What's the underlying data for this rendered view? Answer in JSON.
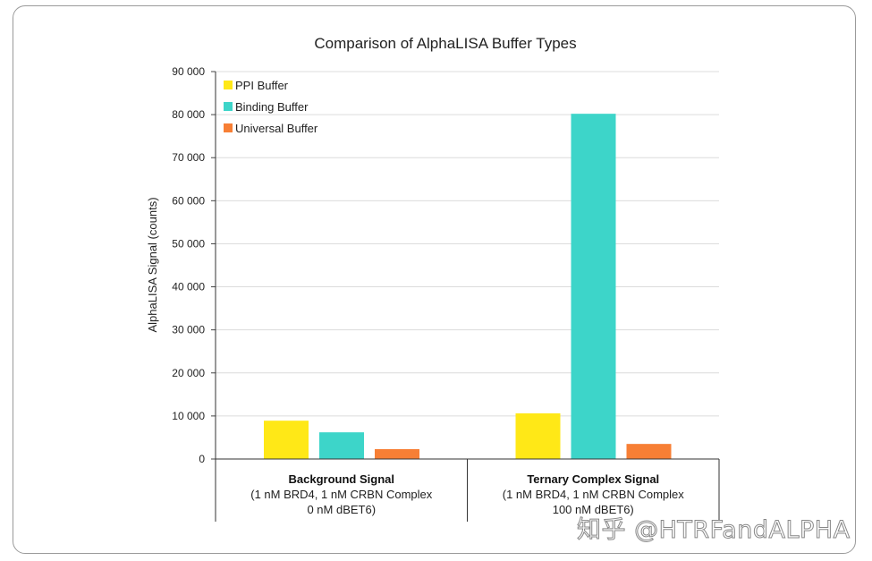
{
  "chart_data": {
    "type": "bar",
    "title": "Comparison of AlphaLISA Buffer Types",
    "xlabel": "",
    "ylabel": "AlphaLISA Signal (counts)",
    "ylim": [
      0,
      90000
    ],
    "yticks": [
      "0",
      "10 000",
      "20 000",
      "30 000",
      "40 000",
      "50 000",
      "60 000",
      "70 000",
      "80 000",
      "90 000"
    ],
    "grid": true,
    "legend_position": "top-left",
    "categories": [
      {
        "title": "Background Signal",
        "line1": "(1 nM BRD4, 1 nM CRBN Complex",
        "line2": "0 nM dBET6)"
      },
      {
        "title": "Ternary Complex Signal",
        "line1": "(1 nM BRD4, 1 nM CRBN Complex",
        "line2": "100 nM dBET6)"
      }
    ],
    "series": [
      {
        "name": "PPI Buffer",
        "color": "#FFE817",
        "values": [
          8900,
          10600
        ]
      },
      {
        "name": "Binding Buffer",
        "color": "#3DD5C9",
        "values": [
          6200,
          80200
        ]
      },
      {
        "name": "Universal Buffer",
        "color": "#F77F35",
        "values": [
          2300,
          3500
        ]
      }
    ]
  },
  "watermark": "知乎 @HTRFandALPHA"
}
